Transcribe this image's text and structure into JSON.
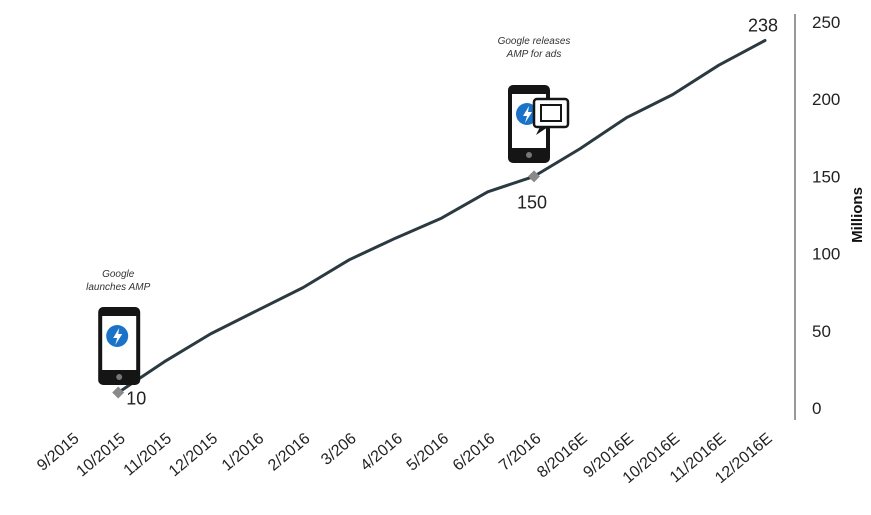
{
  "chart_data": {
    "type": "line",
    "ylabel": "Millions",
    "ylim": [
      0,
      250
    ],
    "yticks": [
      "0",
      "50",
      "100",
      "150",
      "200",
      "250"
    ],
    "y_axis_position": "right",
    "grid": false,
    "legend": "none",
    "categories": [
      "9/2015",
      "10/2015",
      "11/2015",
      "12/2015",
      "1/2016",
      "2/2016",
      "3/206",
      "4/2016",
      "5/2016",
      "6/2016",
      "7/2016",
      "8/2016E",
      "9/2016E",
      "10/2016E",
      "11/2016E",
      "12/2016E"
    ],
    "x": [
      "10/2015",
      "11/2015",
      "12/2015",
      "1/2016",
      "2/2016",
      "3/206",
      "4/2016",
      "5/2016",
      "6/2016",
      "7/2016",
      "8/2016E",
      "9/2016E",
      "10/2016E",
      "11/2016E",
      "12/2016E"
    ],
    "series": [
      {
        "values": [
          10,
          30,
          48,
          63,
          78,
          96,
          110,
          123,
          140,
          150,
          168,
          188,
          203,
          222,
          238
        ],
        "color": "#2b3a40"
      }
    ],
    "data_labels": [
      {
        "x": "10/2015",
        "text": "10"
      },
      {
        "x": "7/2016",
        "text": "150"
      },
      {
        "x": "12/2016E",
        "text": "238"
      }
    ],
    "annotations": [
      {
        "x": "10/2015",
        "lines": [
          "Google",
          "launches AMP"
        ],
        "icon": "amp-phone-icon"
      },
      {
        "x": "7/2016",
        "lines": [
          "Google releases",
          "AMP for ads"
        ],
        "icon": "amp-phone-ad-icon"
      }
    ],
    "colors": {
      "line": "#2b3a40",
      "marker": "#8a8a8a",
      "axis": "#555555",
      "amp_blue": "#1a73c8"
    }
  }
}
